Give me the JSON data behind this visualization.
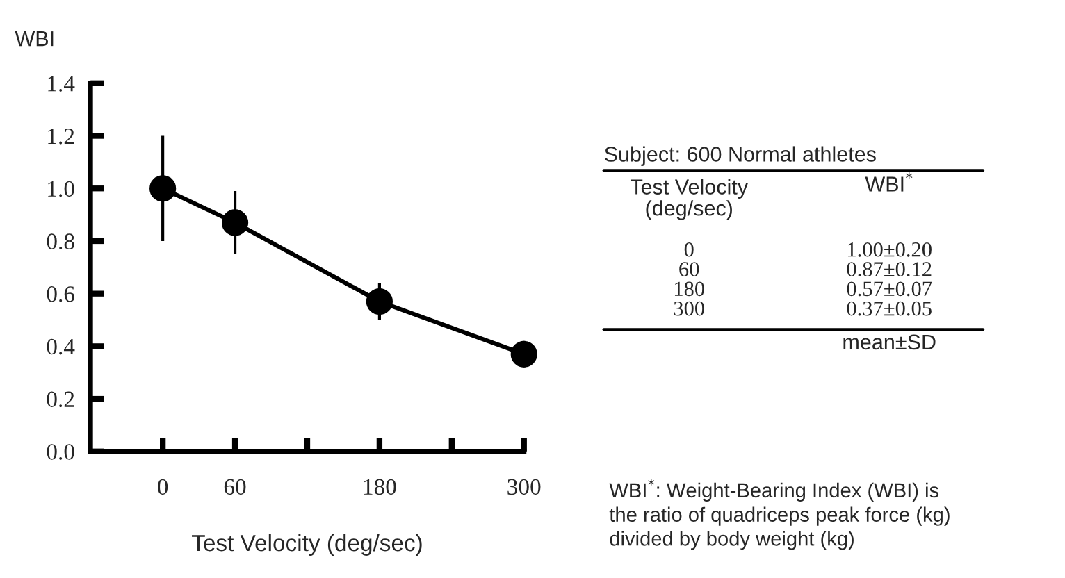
{
  "chart_data": [
    {
      "type": "line",
      "xlabel": "Test Velocity (deg/sec)",
      "ylabel": "WBI",
      "x": [
        0,
        60,
        180,
        300
      ],
      "series": [
        {
          "color": "#000000",
          "values": [
            1.0,
            0.87,
            0.57,
            0.37
          ],
          "errors": [
            0.2,
            0.12,
            0.07,
            0.05
          ]
        }
      ],
      "xlim": [
        -60,
        300
      ],
      "xticks": [
        0,
        60,
        {
          "value": 120,
          "label": null
        },
        180,
        {
          "value": 240,
          "label": null
        },
        300
      ],
      "ylim": [
        0,
        1.4
      ],
      "yticks": [
        {
          "value": 0,
          "label": "0.0"
        },
        0.2,
        0.4,
        0.6,
        0.8,
        {
          "value": 1.0,
          "label": "1.0"
        },
        1.2,
        1.4
      ],
      "marker": "circle",
      "line_style": "solid",
      "grid": false,
      "legend": false
    },
    {
      "type": "other",
      "title": "Subject: 600 Normal athletes",
      "annotations": [
        "Test Velocity\n(deg/sec)",
        "WBI$^{*}$",
        "0",
        "1.00±0.20",
        "60",
        "0.87±0.12",
        "180",
        "0.57±0.07",
        "300",
        "0.37±0.05",
        "mean±SD",
        "WBI$^{*}$: Weight-Bearing Index (WBI) is\nthe ratio of quadriceps peak force (kg)\ndivided by body weight (kg)"
      ]
    }
  ]
}
